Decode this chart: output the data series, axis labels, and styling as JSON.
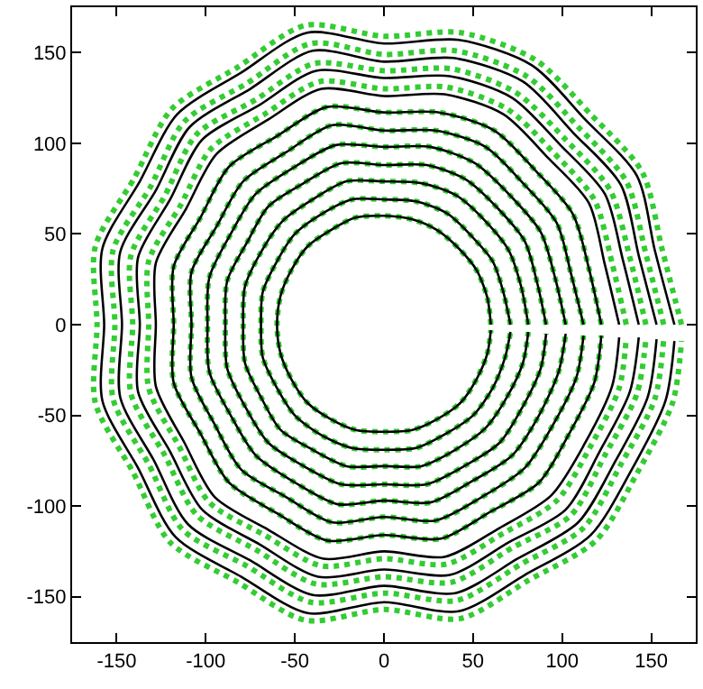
{
  "chart_data": {
    "type": "line",
    "xlim": [
      -175,
      175
    ],
    "ylim": [
      -175,
      175
    ],
    "xticks": [
      -150,
      -100,
      -50,
      0,
      50,
      100,
      150
    ],
    "yticks": [
      -150,
      -100,
      -50,
      0,
      50,
      100,
      150
    ],
    "marker": "none",
    "series": [
      {
        "color": "#000000",
        "line_style": "solid",
        "x": [
          60,
          58,
          52,
          42,
          30,
          16,
          0,
          -16,
          -30,
          -43,
          -52,
          -58,
          -60,
          -58,
          -52,
          -43,
          -30,
          -16,
          0,
          16,
          30,
          43,
          52,
          58,
          60
        ],
        "values": [
          0,
          15,
          30,
          42,
          52,
          58,
          60,
          59,
          52,
          43,
          30,
          16,
          0,
          -16,
          -30,
          -43,
          -52,
          -58,
          -59,
          -58,
          -52,
          -43,
          -30,
          -16,
          -3
        ]
      },
      {
        "color": "#000000",
        "line_style": "solid",
        "x": [
          71,
          67,
          61,
          49,
          36,
          18,
          0,
          -18,
          -35,
          -50,
          -60,
          -68,
          -69,
          -68,
          -60,
          -50,
          -35,
          -18,
          0,
          18,
          35,
          50,
          61,
          68,
          71
        ],
        "values": [
          0,
          18,
          35,
          49,
          61,
          68,
          69,
          69,
          61,
          50,
          35,
          18,
          0,
          -18,
          -35,
          -50,
          -61,
          -68,
          -69,
          -68,
          -60,
          -50,
          -35,
          -18,
          -4
        ]
      },
      {
        "color": "#000000",
        "line_style": "solid",
        "x": [
          81,
          77,
          70,
          57,
          41,
          21,
          0,
          -21,
          -40,
          -57,
          -69,
          -78,
          -79,
          -78,
          -69,
          -58,
          -40,
          -21,
          0,
          21,
          40,
          57,
          69,
          78,
          81
        ],
        "values": [
          0,
          21,
          41,
          57,
          71,
          78,
          79,
          79,
          69,
          57,
          40,
          21,
          0,
          -21,
          -40,
          -58,
          -69,
          -78,
          -78,
          -78,
          -69,
          -57,
          -40,
          -21,
          -4
        ]
      },
      {
        "color": "#000000",
        "line_style": "solid",
        "x": [
          91,
          86,
          79,
          64,
          46,
          24,
          0,
          -24,
          -45,
          -65,
          -77,
          -88,
          -89,
          -88,
          -78,
          -65,
          -45,
          -24,
          0,
          24,
          45,
          65,
          78,
          88,
          91
        ],
        "values": [
          0,
          23,
          46,
          64,
          80,
          88,
          88,
          89,
          78,
          65,
          45,
          24,
          0,
          -24,
          -45,
          -65,
          -78,
          -88,
          -88,
          -88,
          -78,
          -65,
          -45,
          -24,
          -5
        ]
      },
      {
        "color": "#000000",
        "line_style": "solid",
        "x": [
          102,
          96,
          88,
          71,
          51,
          26,
          0,
          -27,
          -50,
          -72,
          -86,
          -98,
          -99,
          -98,
          -86,
          -72,
          -50,
          -26,
          0,
          26,
          50,
          72,
          87,
          98,
          102
        ],
        "values": [
          0,
          26,
          51,
          71,
          89,
          98,
          98,
          99,
          87,
          72,
          50,
          26,
          0,
          -26,
          -50,
          -72,
          -87,
          -99,
          -97,
          -98,
          -86,
          -72,
          -50,
          -26,
          -5
        ]
      },
      {
        "color": "#000000",
        "line_style": "solid",
        "x": [
          112,
          105,
          97,
          78,
          57,
          29,
          0,
          -29,
          -55,
          -79,
          -94,
          -108,
          -108,
          -108,
          -95,
          -80,
          -55,
          -29,
          0,
          29,
          55,
          79,
          95,
          108,
          112
        ],
        "values": [
          0,
          28,
          56,
          78,
          98,
          107,
          107,
          110,
          95,
          79,
          54,
          29,
          0,
          -29,
          -55,
          -80,
          -95,
          -109,
          -106,
          -108,
          -95,
          -79,
          -55,
          -29,
          -6
        ]
      },
      {
        "color": "#000000",
        "line_style": "solid",
        "x": [
          122,
          115,
          106,
          85,
          62,
          31,
          0,
          -32,
          -60,
          -87,
          -103,
          -118,
          -118,
          -118,
          -103,
          -87,
          -60,
          -32,
          0,
          32,
          60,
          87,
          104,
          118,
          122
        ],
        "values": [
          0,
          31,
          61,
          85,
          107,
          117,
          117,
          120,
          104,
          87,
          59,
          32,
          0,
          -32,
          -60,
          -87,
          -104,
          -119,
          -116,
          -118,
          -103,
          -87,
          -60,
          -32,
          -6
        ]
      },
      {
        "color": "#000000",
        "line_style": "solid",
        "x": [
          132,
          124,
          115,
          92,
          67,
          34,
          0,
          -35,
          -65,
          -94,
          -111,
          -128,
          -128,
          -128,
          -112,
          -95,
          -65,
          -34,
          0,
          34,
          65,
          94,
          113,
          128,
          132
        ],
        "values": [
          0,
          33,
          67,
          92,
          116,
          127,
          126,
          130,
          113,
          94,
          64,
          34,
          0,
          -34,
          -65,
          -95,
          -113,
          -129,
          -125,
          -128,
          -112,
          -94,
          -65,
          -34,
          -7
        ]
      },
      {
        "color": "#000000",
        "line_style": "solid",
        "x": [
          143,
          134,
          124,
          99,
          72,
          37,
          0,
          -38,
          -70,
          -102,
          -120,
          -138,
          -137,
          -138,
          -120,
          -102,
          -70,
          -37,
          0,
          37,
          70,
          102,
          121,
          138,
          143
        ],
        "values": [
          0,
          36,
          72,
          99,
          125,
          137,
          136,
          140,
          121,
          102,
          69,
          37,
          0,
          -37,
          -70,
          -102,
          -121,
          -139,
          -135,
          -138,
          -120,
          -102,
          -70,
          -37,
          -7
        ]
      },
      {
        "color": "#000000",
        "line_style": "solid",
        "x": [
          153,
          143,
          133,
          106,
          78,
          39,
          0,
          -40,
          -75,
          -109,
          -128,
          -148,
          -147,
          -148,
          -129,
          -110,
          -75,
          -40,
          0,
          40,
          75,
          109,
          130,
          148,
          153
        ],
        "values": [
          0,
          38,
          77,
          106,
          134,
          147,
          145,
          151,
          130,
          109,
          74,
          40,
          0,
          -40,
          -75,
          -110,
          -130,
          -149,
          -144,
          -148,
          -129,
          -109,
          -75,
          -40,
          -8
        ]
      },
      {
        "color": "#000000",
        "line_style": "solid",
        "x": [
          163,
          152,
          142,
          113,
          83,
          42,
          0,
          -43,
          -80,
          -116,
          -137,
          -158,
          -157,
          -158,
          -138,
          -117,
          -80,
          -43,
          0,
          42,
          79,
          116,
          139,
          158,
          163
        ],
        "values": [
          0,
          41,
          82,
          113,
          143,
          157,
          155,
          161,
          139,
          116,
          79,
          42,
          0,
          -42,
          -79,
          -117,
          -139,
          -159,
          -153,
          -158,
          -138,
          -116,
          -80,
          -42,
          -9
        ]
      },
      {
        "color": "#33cc33",
        "line_style": "dotted",
        "x": [
          60,
          58,
          52,
          42,
          30,
          16,
          0,
          -16,
          -30,
          -43,
          -52,
          -58,
          -60,
          -58,
          -52,
          -43,
          -30,
          -16,
          0,
          16,
          30,
          43,
          52,
          58,
          60
        ],
        "values": [
          0,
          15,
          30,
          42,
          52,
          58,
          60,
          59,
          52,
          43,
          30,
          16,
          0,
          -16,
          -30,
          -43,
          -52,
          -58,
          -59,
          -58,
          -52,
          -43,
          -30,
          -16,
          -3
        ]
      },
      {
        "color": "#33cc33",
        "line_style": "dotted",
        "x": [
          71,
          67,
          61,
          49,
          36,
          18,
          0,
          -18,
          -35,
          -50,
          -60,
          -68,
          -69,
          -68,
          -60,
          -50,
          -35,
          -18,
          0,
          18,
          35,
          50,
          61,
          68,
          71
        ],
        "values": [
          0,
          18,
          35,
          49,
          61,
          68,
          69,
          69,
          61,
          50,
          35,
          18,
          0,
          -18,
          -35,
          -50,
          -61,
          -68,
          -69,
          -68,
          -60,
          -50,
          -35,
          -18,
          -4
        ]
      },
      {
        "color": "#33cc33",
        "line_style": "dotted",
        "x": [
          81,
          77,
          70,
          57,
          41,
          21,
          0,
          -21,
          -40,
          -57,
          -69,
          -78,
          -79,
          -78,
          -69,
          -58,
          -40,
          -21,
          0,
          21,
          40,
          57,
          69,
          78,
          81
        ],
        "values": [
          0,
          21,
          41,
          57,
          71,
          78,
          79,
          79,
          69,
          57,
          40,
          21,
          0,
          -21,
          -40,
          -58,
          -69,
          -78,
          -78,
          -78,
          -69,
          -57,
          -40,
          -21,
          -4
        ]
      },
      {
        "color": "#33cc33",
        "line_style": "dotted",
        "x": [
          91,
          86,
          79,
          64,
          46,
          24,
          0,
          -24,
          -45,
          -65,
          -77,
          -88,
          -89,
          -88,
          -78,
          -65,
          -45,
          -24,
          0,
          24,
          45,
          65,
          78,
          88,
          91
        ],
        "values": [
          0,
          23,
          46,
          64,
          80,
          88,
          88,
          89,
          78,
          65,
          45,
          24,
          0,
          -24,
          -45,
          -65,
          -78,
          -88,
          -88,
          -88,
          -78,
          -65,
          -45,
          -24,
          -5
        ]
      },
      {
        "color": "#33cc33",
        "line_style": "dotted",
        "x": [
          102,
          96,
          88,
          71,
          51,
          26,
          0,
          -27,
          -50,
          -72,
          -86,
          -98,
          -99,
          -98,
          -86,
          -72,
          -50,
          -26,
          0,
          26,
          50,
          72,
          87,
          98,
          102
        ],
        "values": [
          0,
          26,
          51,
          71,
          89,
          98,
          98,
          99,
          87,
          72,
          50,
          26,
          0,
          -26,
          -50,
          -72,
          -87,
          -99,
          -97,
          -98,
          -86,
          -72,
          -50,
          -26,
          -5
        ]
      },
      {
        "color": "#33cc33",
        "line_style": "dotted",
        "x": [
          112,
          105,
          97,
          78,
          57,
          29,
          0,
          -29,
          -55,
          -79,
          -94,
          -108,
          -108,
          -108,
          -95,
          -80,
          -55,
          -29,
          0,
          29,
          55,
          79,
          95,
          108,
          112
        ],
        "values": [
          0,
          28,
          56,
          78,
          98,
          107,
          107,
          110,
          95,
          79,
          54,
          29,
          0,
          -29,
          -55,
          -80,
          -95,
          -109,
          -106,
          -108,
          -95,
          -79,
          -55,
          -29,
          -6
        ]
      },
      {
        "color": "#33cc33",
        "line_style": "dotted",
        "x": [
          122,
          115,
          106,
          85,
          62,
          31,
          0,
          -32,
          -60,
          -87,
          -103,
          -118,
          -118,
          -118,
          -103,
          -87,
          -60,
          -32,
          0,
          32,
          60,
          87,
          104,
          118,
          122
        ],
        "values": [
          0,
          31,
          61,
          85,
          107,
          117,
          117,
          120,
          104,
          87,
          59,
          32,
          0,
          -32,
          -60,
          -87,
          -104,
          -119,
          -116,
          -118,
          -103,
          -87,
          -60,
          -32,
          -6
        ]
      },
      {
        "color": "#33cc33",
        "line_style": "dotted",
        "x": [
          136,
          128,
          118,
          95,
          69,
          35,
          0,
          -36,
          -67,
          -97,
          -114,
          -132,
          -132,
          -132,
          -115,
          -98,
          -67,
          -35,
          0,
          35,
          67,
          97,
          116,
          132,
          136
        ],
        "values": [
          0,
          34,
          69,
          95,
          119,
          131,
          130,
          134,
          116,
          97,
          66,
          35,
          0,
          -35,
          -67,
          -98,
          -116,
          -133,
          -129,
          -132,
          -115,
          -97,
          -67,
          -35,
          -7
        ]
      },
      {
        "color": "#33cc33",
        "line_style": "dotted",
        "x": [
          147,
          138,
          127,
          102,
          74,
          38,
          0,
          -39,
          -72,
          -105,
          -123,
          -142,
          -141,
          -142,
          -123,
          -105,
          -72,
          -38,
          0,
          38,
          72,
          105,
          124,
          142,
          147
        ],
        "values": [
          0,
          37,
          74,
          102,
          128,
          141,
          140,
          144,
          124,
          105,
          71,
          38,
          0,
          -38,
          -72,
          -105,
          -124,
          -143,
          -139,
          -142,
          -123,
          -105,
          -72,
          -38,
          -8
        ]
      },
      {
        "color": "#33cc33",
        "line_style": "dotted",
        "x": [
          157,
          147,
          136,
          109,
          80,
          40,
          0,
          -41,
          -77,
          -112,
          -131,
          -152,
          -151,
          -152,
          -132,
          -113,
          -77,
          -41,
          0,
          41,
          77,
          112,
          133,
          152,
          157
        ],
        "values": [
          0,
          39,
          79,
          109,
          137,
          151,
          149,
          155,
          133,
          112,
          76,
          41,
          0,
          -41,
          -77,
          -113,
          -133,
          -153,
          -148,
          -152,
          -132,
          -112,
          -77,
          -41,
          -8
        ]
      },
      {
        "color": "#33cc33",
        "line_style": "dotted",
        "x": [
          167,
          156,
          145,
          116,
          85,
          43,
          0,
          -44,
          -82,
          -119,
          -140,
          -162,
          -161,
          -162,
          -141,
          -120,
          -82,
          -44,
          0,
          43,
          81,
          119,
          142,
          162,
          167
        ],
        "values": [
          0,
          42,
          84,
          116,
          146,
          161,
          159,
          165,
          142,
          119,
          81,
          43,
          0,
          -43,
          -81,
          -120,
          -142,
          -163,
          -157,
          -162,
          -141,
          -119,
          -82,
          -43,
          -9
        ]
      }
    ]
  }
}
